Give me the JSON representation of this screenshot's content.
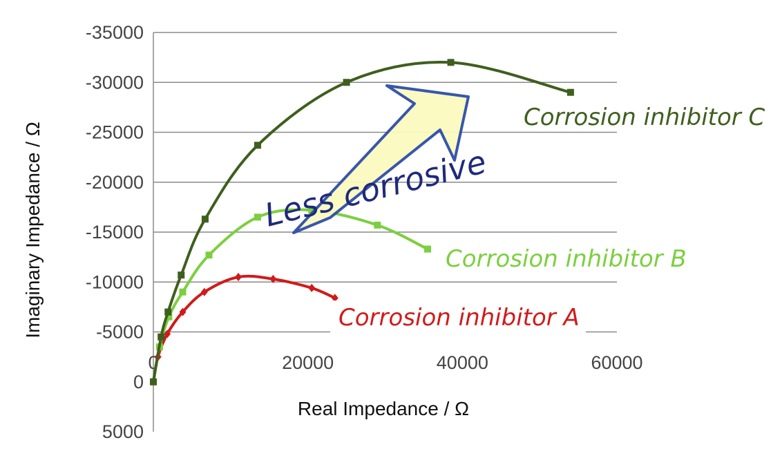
{
  "chart_data": {
    "type": "line",
    "xlabel": "Real Impedance / Ω",
    "ylabel": "Imaginary Impedance / Ω",
    "xlim": [
      0,
      60000
    ],
    "ylim": [
      5000,
      -35000
    ],
    "x_ticks": [
      "0",
      "20000",
      "40000",
      "60000"
    ],
    "y_ticks": [
      "-35000",
      "-30000",
      "-25000",
      "-20000",
      "-15000",
      "-10000",
      "-5000",
      "0",
      "5000"
    ],
    "grid": "horizontal",
    "series": [
      {
        "name": "Corrosion inhibitor A",
        "color": "#d11a1a",
        "points": [
          [
            0,
            0
          ],
          [
            600,
            -2500
          ],
          [
            1800,
            -4800
          ],
          [
            3800,
            -7000
          ],
          [
            6600,
            -9000
          ],
          [
            11000,
            -10500
          ],
          [
            15500,
            -10300
          ],
          [
            20500,
            -9400
          ],
          [
            23500,
            -8400
          ]
        ]
      },
      {
        "name": "Corrosion inhibitor B",
        "color": "#7ccf3f",
        "points": [
          [
            0,
            0
          ],
          [
            800,
            -3500
          ],
          [
            2000,
            -6500
          ],
          [
            3800,
            -9000
          ],
          [
            7200,
            -12700
          ],
          [
            13500,
            -16500
          ],
          [
            20500,
            -17200
          ],
          [
            29000,
            -15700
          ],
          [
            35500,
            -13300
          ]
        ]
      },
      {
        "name": "Corrosion inhibitor C",
        "color": "#3f5f1e",
        "points": [
          [
            0,
            0
          ],
          [
            1000,
            -4500
          ],
          [
            1900,
            -7000
          ],
          [
            3600,
            -10700
          ],
          [
            6700,
            -16300
          ],
          [
            13500,
            -23700
          ],
          [
            25000,
            -30000
          ],
          [
            38500,
            -32000
          ],
          [
            54000,
            -29000
          ]
        ]
      }
    ],
    "annotations": [
      {
        "text": "Less corrosive",
        "arrow": "up-right"
      }
    ]
  }
}
